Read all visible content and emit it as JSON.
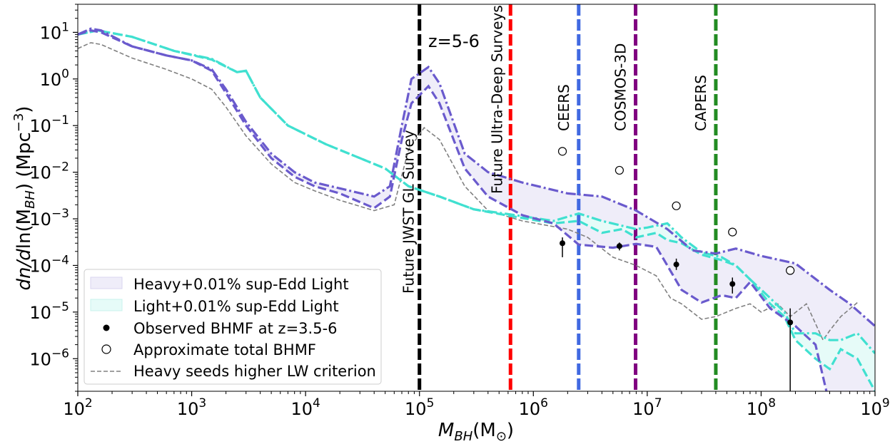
{
  "chart_data": {
    "type": "line",
    "title": "",
    "xlabel_parts": [
      "M",
      "BH",
      "(M",
      "⊙",
      ")"
    ],
    "ylabel_parts": [
      "dn/d",
      "ln(M",
      "BH",
      ") (Mpc",
      "−3",
      ")"
    ],
    "xscale": "log",
    "yscale": "log",
    "xlim": [
      100,
      1000000000
    ],
    "ylim": [
      2e-07,
      40
    ],
    "x_ticks": [
      {
        "value": 100,
        "base": "10",
        "exp": "2"
      },
      {
        "value": 1000,
        "base": "10",
        "exp": "3"
      },
      {
        "value": 10000,
        "base": "10",
        "exp": "4"
      },
      {
        "value": 100000,
        "base": "10",
        "exp": "5"
      },
      {
        "value": 1000000,
        "base": "10",
        "exp": "6"
      },
      {
        "value": 10000000,
        "base": "10",
        "exp": "7"
      },
      {
        "value": 100000000,
        "base": "10",
        "exp": "8"
      },
      {
        "value": 1000000000,
        "base": "10",
        "exp": "9"
      }
    ],
    "y_ticks": [
      {
        "value": 1e-06,
        "base": "10",
        "exp": "−6"
      },
      {
        "value": 1e-05,
        "base": "10",
        "exp": "−5"
      },
      {
        "value": 0.0001,
        "base": "10",
        "exp": "−4"
      },
      {
        "value": 0.001,
        "base": "10",
        "exp": "−3"
      },
      {
        "value": 0.01,
        "base": "10",
        "exp": "−2"
      },
      {
        "value": 0.1,
        "base": "10",
        "exp": "−1"
      },
      {
        "value": 1,
        "base": "10",
        "exp": "0"
      },
      {
        "value": 10,
        "base": "10",
        "exp": "1"
      }
    ],
    "redshift_label": "z=5-6",
    "survey_lines": [
      {
        "name": "Future JWST GL Survey",
        "x": 100000,
        "color": "#000000"
      },
      {
        "name": "Future Ultra-Deep Surveys",
        "x": 630000,
        "color": "#ff0000"
      },
      {
        "name": "CEERS",
        "x": 2500000,
        "color": "#4169e1"
      },
      {
        "name": "COSMOS-3D",
        "x": 7900000,
        "color": "#800080"
      },
      {
        "name": "CAPERS",
        "x": 40000000,
        "color": "#228b22"
      }
    ],
    "bands": [
      {
        "name": "Heavy+0.01% sup-Edd Light",
        "color": "#6a5acd",
        "fill": "#efedf9",
        "upper": [
          [
            100,
            9
          ],
          [
            130,
            12
          ],
          [
            160,
            11
          ],
          [
            300,
            5
          ],
          [
            600,
            3.2
          ],
          [
            1000,
            2.5
          ],
          [
            1500,
            1.6
          ],
          [
            2000,
            0.6
          ],
          [
            3000,
            0.12
          ],
          [
            5000,
            0.025
          ],
          [
            8000,
            0.01
          ],
          [
            12000,
            0.006
          ],
          [
            20000,
            0.0045
          ],
          [
            40000,
            0.003
          ],
          [
            55000,
            0.005
          ],
          [
            70000,
            0.1
          ],
          [
            85000,
            1
          ],
          [
            120000,
            1.8
          ],
          [
            150000,
            0.8
          ],
          [
            250000,
            0.025
          ],
          [
            400000,
            0.01
          ],
          [
            800000,
            0.006
          ],
          [
            2000000,
            0.0035
          ],
          [
            4000000,
            0.003
          ],
          [
            8000000,
            0.0015
          ],
          [
            15000000,
            0.0006
          ],
          [
            25000000,
            0.00021
          ],
          [
            40000000,
            0.00018
          ],
          [
            60000000,
            0.00023
          ],
          [
            100000000,
            0.00016
          ],
          [
            200000000,
            0.00011
          ],
          [
            400000000,
            3e-05
          ],
          [
            600000000,
            1.5e-05
          ],
          [
            1000000000,
            5e-06
          ]
        ],
        "lower": [
          [
            100,
            9
          ],
          [
            130,
            11
          ],
          [
            160,
            10
          ],
          [
            300,
            5
          ],
          [
            600,
            3.2
          ],
          [
            1000,
            2.5
          ],
          [
            1500,
            1.5
          ],
          [
            2000,
            0.5
          ],
          [
            3000,
            0.1
          ],
          [
            5000,
            0.02
          ],
          [
            8000,
            0.008
          ],
          [
            12000,
            0.005
          ],
          [
            20000,
            0.0035
          ],
          [
            40000,
            0.0017
          ],
          [
            55000,
            0.003
          ],
          [
            70000,
            0.05
          ],
          [
            85000,
            0.3
          ],
          [
            120000,
            0.7
          ],
          [
            150000,
            0.3
          ],
          [
            250000,
            0.012
          ],
          [
            400000,
            0.003
          ],
          [
            800000,
            0.0012
          ],
          [
            1500000,
            0.0008
          ],
          [
            2500000,
            0.00028
          ],
          [
            5000000,
            0.00024
          ],
          [
            8000000,
            0.00029
          ],
          [
            12000000,
            0.00025
          ],
          [
            15000000,
            0.0001
          ],
          [
            20000000,
            3e-05
          ],
          [
            30000000,
            1.6e-05
          ],
          [
            45000000,
            2.3e-05
          ],
          [
            60000000,
            2e-05
          ],
          [
            80000000,
            4.4e-05
          ],
          [
            120000000,
            1.2e-05
          ],
          [
            200000000,
            5e-06
          ],
          [
            300000000,
            2e-06
          ],
          [
            400000000,
            1e-07
          ],
          [
            1000000000,
            1e-07
          ]
        ]
      },
      {
        "name": "Light+0.01% sup-Edd Light",
        "color": "#40e0d0",
        "fill": "#e6fbf8",
        "upper": [
          [
            100,
            9
          ],
          [
            150,
            11
          ],
          [
            300,
            8
          ],
          [
            700,
            4
          ],
          [
            1500,
            2.7
          ],
          [
            2500,
            1.4
          ],
          [
            3000,
            1.5
          ],
          [
            4000,
            0.4
          ],
          [
            7000,
            0.1
          ],
          [
            15000,
            0.04
          ],
          [
            30000,
            0.02
          ],
          [
            50000,
            0.012
          ],
          [
            80000,
            0.005
          ],
          [
            150000,
            0.003
          ],
          [
            300000,
            0.0016
          ],
          [
            700000,
            0.0012
          ],
          [
            1500000,
            0.0009
          ],
          [
            2500000,
            0.0013
          ],
          [
            4000000,
            0.0009
          ],
          [
            8000000,
            0.0006
          ],
          [
            10000000,
            0.00065
          ],
          [
            15000000,
            0.0008
          ],
          [
            20000000,
            0.0004
          ],
          [
            30000000,
            0.00019
          ],
          [
            45000000,
            0.00015
          ],
          [
            60000000,
            0.0001
          ],
          [
            80000000,
            5e-05
          ],
          [
            120000000,
            2e-05
          ],
          [
            160000000,
            1e-05
          ],
          [
            200000000,
            3.5e-06
          ],
          [
            300000000,
            3.5e-06
          ],
          [
            400000000,
            2.5e-06
          ],
          [
            500000000,
            2.5e-06
          ],
          [
            700000000,
            3.5e-06
          ],
          [
            1000000000,
            1.3e-06
          ]
        ],
        "lower": [
          [
            100,
            9
          ],
          [
            150,
            11
          ],
          [
            300,
            8
          ],
          [
            700,
            4
          ],
          [
            1500,
            2.6
          ],
          [
            2500,
            1.4
          ],
          [
            3000,
            1.5
          ],
          [
            4000,
            0.4
          ],
          [
            7000,
            0.1
          ],
          [
            15000,
            0.04
          ],
          [
            30000,
            0.02
          ],
          [
            50000,
            0.012
          ],
          [
            80000,
            0.005
          ],
          [
            150000,
            0.003
          ],
          [
            300000,
            0.0016
          ],
          [
            700000,
            0.0011
          ],
          [
            1500000,
            0.0008
          ],
          [
            2500000,
            0.0009
          ],
          [
            4000000,
            0.0005
          ],
          [
            6000000,
            0.0006
          ],
          [
            8000000,
            0.0004
          ],
          [
            12000000,
            0.0005
          ],
          [
            15000000,
            0.00035
          ],
          [
            20000000,
            0.0003
          ],
          [
            30000000,
            0.00017
          ],
          [
            45000000,
            0.00013
          ],
          [
            60000000,
            0.0001
          ],
          [
            80000000,
            5e-05
          ],
          [
            120000000,
            1.5e-05
          ],
          [
            160000000,
            8e-06
          ],
          [
            200000000,
            2.5e-06
          ],
          [
            300000000,
            1e-06
          ],
          [
            400000000,
            6e-07
          ],
          [
            500000000,
            1.6e-06
          ],
          [
            700000000,
            1e-06
          ],
          [
            1000000000,
            2e-07
          ]
        ]
      }
    ],
    "heavy_lw_series": {
      "name": "Heavy seeds higher LW criterion",
      "color": "#808080",
      "points": [
        [
          100,
          4.5
        ],
        [
          130,
          6
        ],
        [
          160,
          5.5
        ],
        [
          300,
          2.8
        ],
        [
          600,
          1.6
        ],
        [
          1000,
          1
        ],
        [
          1500,
          0.6
        ],
        [
          2000,
          0.25
        ],
        [
          3000,
          0.06
        ],
        [
          5000,
          0.015
        ],
        [
          8000,
          0.006
        ],
        [
          12000,
          0.004
        ],
        [
          20000,
          0.0025
        ],
        [
          40000,
          0.0015
        ],
        [
          60000,
          0.002
        ],
        [
          80000,
          0.03
        ],
        [
          110000,
          0.09
        ],
        [
          150000,
          0.05
        ],
        [
          250000,
          0.005
        ],
        [
          400000,
          0.0015
        ],
        [
          800000,
          0.0009
        ],
        [
          2000000,
          0.0006
        ],
        [
          3000000,
          0.0004
        ],
        [
          5000000,
          0.00015
        ],
        [
          8000000,
          0.0001
        ],
        [
          12000000,
          6e-05
        ],
        [
          16000000,
          2e-05
        ],
        [
          20000000,
          1.5e-05
        ],
        [
          30000000,
          7e-06
        ],
        [
          40000000,
          8e-06
        ],
        [
          60000000,
          1.2e-05
        ],
        [
          80000000,
          1.5e-05
        ],
        [
          100000000,
          1e-05
        ],
        [
          140000000,
          1.5e-05
        ],
        [
          180000000,
          8e-06
        ],
        [
          250000000,
          1.5e-05
        ],
        [
          350000000,
          2.5e-06
        ],
        [
          400000000,
          4e-06
        ],
        [
          500000000,
          8e-06
        ],
        [
          700000000,
          1.6e-05
        ]
      ]
    },
    "observed_bhmf": {
      "name": "Observed BHMF at z=3.5-6",
      "points": [
        {
          "x": 1800000,
          "y": 0.0003,
          "err_low": 0.00015,
          "err_high": 0.0004
        },
        {
          "x": 5700000,
          "y": 0.00026,
          "err_low": 0.00021,
          "err_high": 0.00031
        },
        {
          "x": 18000000,
          "y": 0.000105,
          "err_low": 8e-05,
          "err_high": 0.00014
        },
        {
          "x": 56000000,
          "y": 4e-05,
          "err_low": 2.5e-05,
          "err_high": 5.5e-05
        },
        {
          "x": 180000000,
          "y": 6e-06,
          "err_low": 2e-07,
          "err_high": 1.2e-05
        }
      ]
    },
    "total_bhmf": {
      "name": "Approximate total BHMF",
      "points": [
        [
          1800000,
          0.028
        ],
        [
          5700000,
          0.011
        ],
        [
          18000000,
          0.0019
        ],
        [
          56000000,
          0.00052
        ],
        [
          180000000,
          7.8e-05
        ]
      ]
    },
    "legend": {
      "position": "lower-left",
      "entries": [
        "Heavy+0.01% sup-Edd Light",
        "Light+0.01% sup-Edd Light",
        "Observed BHMF at z=3.5-6",
        "Approximate total BHMF",
        "Heavy seeds higher LW criterion"
      ]
    }
  }
}
